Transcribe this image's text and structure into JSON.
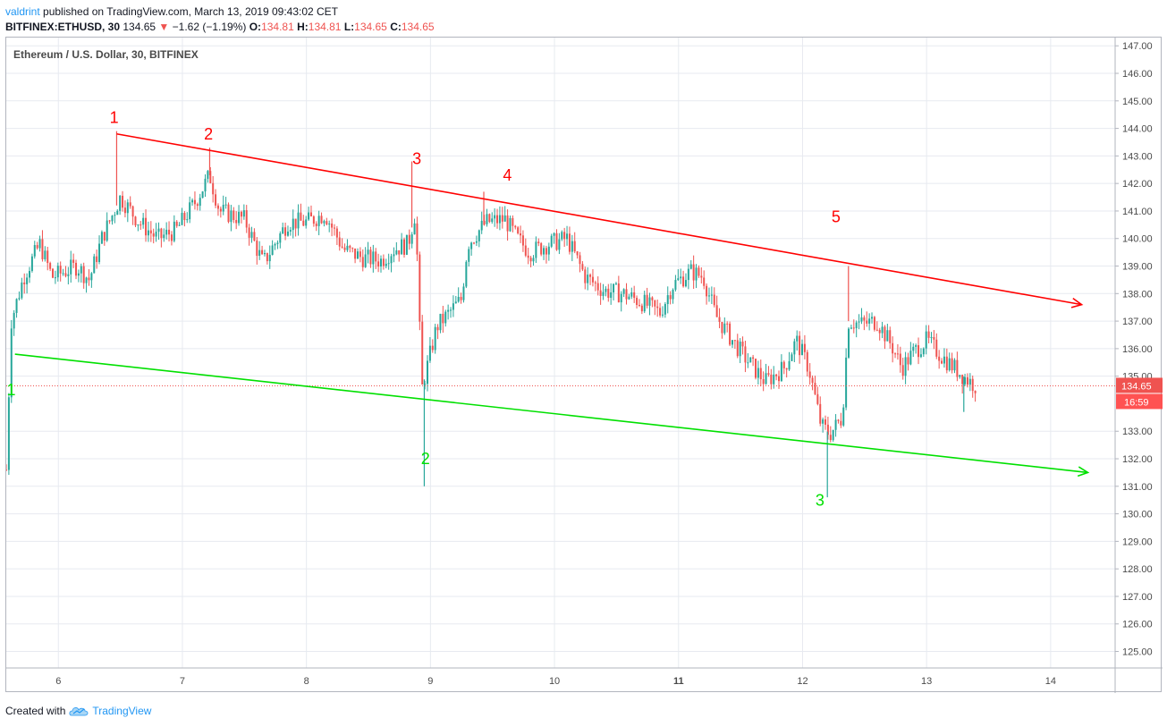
{
  "header": {
    "user": "valdrint",
    "published_text": "published on TradingView.com, March 13, 2019 09:43:02 CET",
    "symbol_interval": "BITFINEX:ETHUSD, 30",
    "last_price": "134.65",
    "change": "−1.62 (−1.19%)",
    "o_label": "O:",
    "o_value": "134.81",
    "h_label": "H:",
    "h_value": "134.81",
    "l_label": "L:",
    "l_value": "134.65",
    "c_label": "C:",
    "c_value": "134.65"
  },
  "colors": {
    "up": "#26a69a",
    "down": "#ef5350",
    "resistance": "#ff0000",
    "support": "#00e000",
    "grid": "#e7eaf0",
    "axis_text": "#4a4a4a"
  },
  "footer": {
    "created_with": "Created with",
    "brand": "TradingView",
    "logo_icon": "tradingview-cloud-icon"
  },
  "price_label": {
    "price": "134.65",
    "countdown": "16:59"
  },
  "chart_data": {
    "type": "candlestick",
    "title": "Ethereum / U.S. Dollar, 30, BITFINEX",
    "y_ticks": [
      "147.00",
      "146.00",
      "145.00",
      "144.00",
      "143.00",
      "142.00",
      "141.00",
      "140.00",
      "139.00",
      "138.00",
      "137.00",
      "136.00",
      "135.00",
      "133.00",
      "132.00",
      "131.00",
      "130.00",
      "129.00",
      "128.00",
      "127.00",
      "126.00",
      "125.00"
    ],
    "ylim": [
      124.4,
      147.3
    ],
    "x_ticks": [
      {
        "label": "6",
        "x": 6.0
      },
      {
        "label": "7",
        "x": 7.0
      },
      {
        "label": "8",
        "x": 8.0
      },
      {
        "label": "9",
        "x": 9.0
      },
      {
        "label": "10",
        "x": 10.0
      },
      {
        "label": "11",
        "x": 11.0,
        "bold": true
      },
      {
        "label": "12",
        "x": 12.0
      },
      {
        "label": "13",
        "x": 13.0
      },
      {
        "label": "14",
        "x": 14.0
      }
    ],
    "xlim": [
      5.58,
      14.52
    ],
    "last_price": 134.65,
    "price_anchors": [
      [
        5.58,
        131.6
      ],
      [
        5.62,
        137.0
      ],
      [
        5.72,
        138.6
      ],
      [
        5.85,
        139.8
      ],
      [
        5.95,
        138.6
      ],
      [
        6.15,
        139.0
      ],
      [
        6.25,
        138.5
      ],
      [
        6.35,
        140.0
      ],
      [
        6.5,
        141.5
      ],
      [
        6.65,
        140.6
      ],
      [
        6.8,
        140.0
      ],
      [
        6.95,
        140.3
      ],
      [
        7.1,
        141.3
      ],
      [
        7.22,
        142.3
      ],
      [
        7.3,
        141.0
      ],
      [
        7.5,
        140.7
      ],
      [
        7.65,
        139.1
      ],
      [
        7.85,
        140.6
      ],
      [
        8.0,
        140.6
      ],
      [
        8.15,
        140.9
      ],
      [
        8.3,
        139.6
      ],
      [
        8.45,
        139.3
      ],
      [
        8.6,
        139.2
      ],
      [
        8.7,
        139.6
      ],
      [
        8.82,
        139.8
      ],
      [
        8.88,
        141.0
      ],
      [
        8.93,
        134.5
      ],
      [
        9.05,
        136.8
      ],
      [
        9.25,
        137.8
      ],
      [
        9.3,
        139.8
      ],
      [
        9.45,
        140.6
      ],
      [
        9.6,
        140.7
      ],
      [
        9.7,
        140.0
      ],
      [
        9.8,
        139.5
      ],
      [
        9.95,
        139.8
      ],
      [
        10.1,
        140.0
      ],
      [
        10.25,
        138.6
      ],
      [
        10.4,
        138.1
      ],
      [
        10.55,
        138.0
      ],
      [
        10.7,
        137.7
      ],
      [
        10.85,
        137.3
      ],
      [
        10.95,
        138.3
      ],
      [
        11.1,
        138.8
      ],
      [
        11.2,
        138.6
      ],
      [
        11.3,
        137.2
      ],
      [
        11.45,
        136.2
      ],
      [
        11.55,
        135.6
      ],
      [
        11.7,
        134.8
      ],
      [
        11.85,
        135.3
      ],
      [
        11.95,
        136.3
      ],
      [
        12.05,
        135.3
      ],
      [
        12.15,
        133.2
      ],
      [
        12.22,
        132.9
      ],
      [
        12.32,
        133.5
      ],
      [
        12.37,
        137.0
      ],
      [
        12.48,
        136.9
      ],
      [
        12.6,
        137.0
      ],
      [
        12.72,
        136.1
      ],
      [
        12.8,
        135.3
      ],
      [
        12.9,
        135.9
      ],
      [
        13.0,
        136.3
      ],
      [
        13.15,
        135.6
      ],
      [
        13.25,
        135.2
      ],
      [
        13.32,
        134.9
      ],
      [
        13.4,
        134.65
      ]
    ],
    "spikes": [
      {
        "x": 6.47,
        "high": 143.9
      },
      {
        "x": 7.22,
        "high": 143.3
      },
      {
        "x": 8.85,
        "high": 142.8
      },
      {
        "x": 8.95,
        "low": 131.0
      },
      {
        "x": 9.43,
        "high": 141.7
      },
      {
        "x": 12.2,
        "low": 130.6
      },
      {
        "x": 12.37,
        "high": 139.0
      },
      {
        "x": 13.3,
        "low": 133.7
      }
    ],
    "resistance_line": {
      "from": [
        6.47,
        143.8
      ],
      "to": [
        14.25,
        137.6
      ]
    },
    "support_line": {
      "from": [
        5.65,
        135.8
      ],
      "to": [
        14.3,
        131.5
      ]
    },
    "annotations": [
      {
        "label": "1",
        "x": 6.45,
        "y": 144.2,
        "color": "#ff0000"
      },
      {
        "label": "2",
        "x": 7.21,
        "y": 143.6,
        "color": "#ff0000"
      },
      {
        "label": "3",
        "x": 8.89,
        "y": 142.7,
        "color": "#ff0000"
      },
      {
        "label": "4",
        "x": 9.62,
        "y": 142.1,
        "color": "#ff0000"
      },
      {
        "label": "5",
        "x": 12.27,
        "y": 140.6,
        "color": "#ff0000"
      },
      {
        "label": "1",
        "x": 5.62,
        "y": 134.3,
        "color": "#00e000"
      },
      {
        "label": "2",
        "x": 8.96,
        "y": 131.8,
        "color": "#00e000"
      },
      {
        "label": "3",
        "x": 12.14,
        "y": 130.3,
        "color": "#00e000"
      }
    ]
  }
}
